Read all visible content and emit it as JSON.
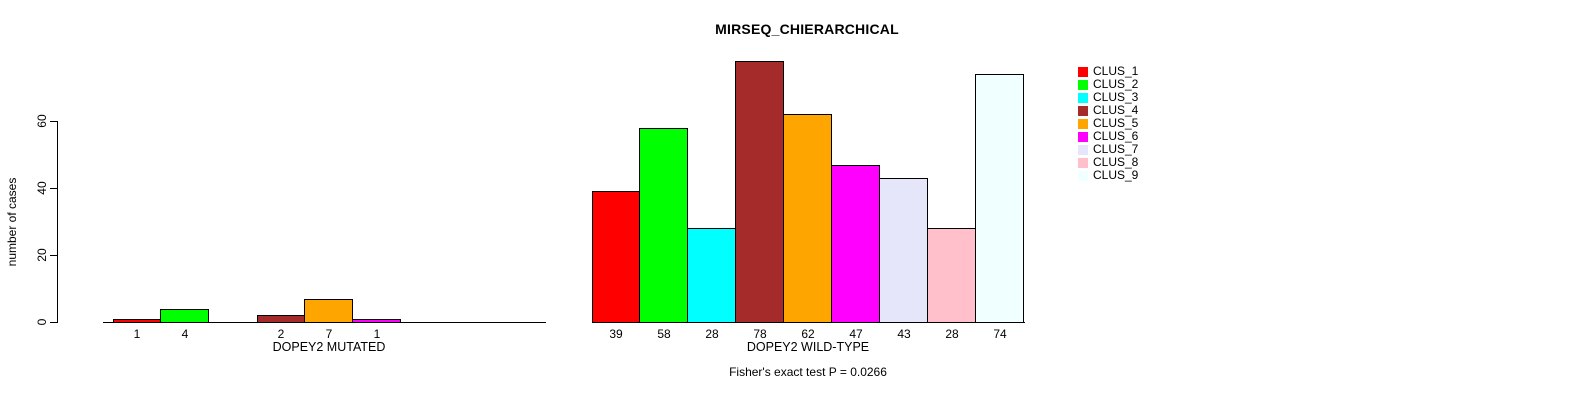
{
  "page": {
    "background": "#ffffff"
  },
  "chart_data": {
    "type": "bar",
    "title": "MIRSEQ_CHIERARCHICAL",
    "ylabel": "number of cases",
    "yticks": [
      0,
      20,
      40,
      60
    ],
    "ylim": [
      0,
      80
    ],
    "grid": false,
    "bar_border_color": "#000000",
    "legend_position": "right",
    "clusters": [
      {
        "name": "CLUS_1",
        "color": "#FF0000"
      },
      {
        "name": "CLUS_2",
        "color": "#00FF00"
      },
      {
        "name": "CLUS_3",
        "color": "#00FFFF"
      },
      {
        "name": "CLUS_4",
        "color": "#A52A2A"
      },
      {
        "name": "CLUS_5",
        "color": "#FFA500"
      },
      {
        "name": "CLUS_6",
        "color": "#FF00FF"
      },
      {
        "name": "CLUS_7",
        "color": "#E6E6FA"
      },
      {
        "name": "CLUS_8",
        "color": "#FFC0CB"
      },
      {
        "name": "CLUS_9",
        "color": "#F0FFFF"
      }
    ],
    "groups": [
      {
        "label": "DOPEY2 MUTATED",
        "values": [
          1,
          4,
          0,
          2,
          7,
          1,
          0,
          0,
          0
        ]
      },
      {
        "label": "DOPEY2 WILD-TYPE",
        "values": [
          39,
          58,
          28,
          78,
          62,
          47,
          43,
          28,
          74
        ]
      }
    ],
    "footnote": "Fisher's exact test P = 0.0266"
  }
}
